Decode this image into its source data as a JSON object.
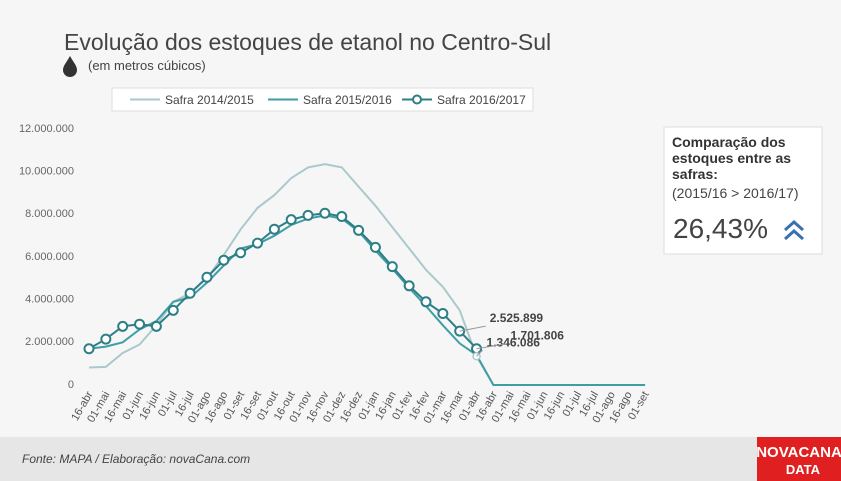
{
  "chart_data": {
    "type": "line",
    "title": "Evolução dos estoques de etanol no Centro-Sul",
    "subtitle": "(em metros cúbicos)",
    "categories": [
      "16-abr",
      "01-mai",
      "16-mai",
      "01-jun",
      "16-jun",
      "01-jul",
      "16-jul",
      "01-ago",
      "16-ago",
      "01-set",
      "16-set",
      "01-out",
      "16-out",
      "01-nov",
      "16-nov",
      "01-dez",
      "16-dez",
      "01-jan",
      "16-jan",
      "01-fev",
      "16-fev",
      "01-mar",
      "16-mar",
      "01-abr",
      "16-abr",
      "01-mai",
      "16-mai",
      "01-jun",
      "16-jun",
      "01-jul",
      "16-jul",
      "01-ago",
      "16-ago",
      "01-set"
    ],
    "series": [
      {
        "name": "Safra 2014/2015",
        "color": "#a9c9cc",
        "marker": false,
        "values": [
          820000,
          850000,
          1500000,
          1900000,
          2800000,
          3900000,
          4300000,
          5000000,
          6100000,
          7300000,
          8300000,
          8900000,
          9700000,
          10200000,
          10350000,
          10200000,
          9300000,
          8400000,
          7400000,
          6400000,
          5400000,
          4600000,
          3500000,
          1346086,
          0,
          0,
          0,
          0,
          0,
          0,
          0,
          0,
          0,
          0
        ],
        "value_labels": [
          null,
          null,
          null,
          null,
          null,
          null,
          null,
          null,
          null,
          null,
          null,
          null,
          null,
          null,
          null,
          null,
          null,
          null,
          null,
          null,
          null,
          null,
          null,
          "1.346.086",
          null,
          null,
          null,
          null,
          null,
          null,
          null,
          null,
          null,
          null
        ]
      },
      {
        "name": "Safra 2015/2016",
        "color": "#3f9ea5",
        "marker": false,
        "values": [
          1700000,
          1800000,
          2000000,
          2600000,
          3000000,
          3900000,
          4100000,
          4800000,
          5600000,
          6400000,
          6600000,
          7000000,
          7500000,
          7800000,
          7950000,
          7800000,
          7200000,
          6300000,
          5450000,
          4550000,
          3700000,
          2800000,
          1950000,
          1400000,
          0,
          0,
          0,
          0,
          0,
          0,
          0,
          0,
          0,
          0
        ]
      },
      {
        "name": "Safra 2016/2017",
        "color": "#2d7f86",
        "marker": true,
        "values": [
          1700000,
          2150000,
          2750000,
          2850000,
          2750000,
          3500000,
          4300000,
          5050000,
          5850000,
          6200000,
          6650000,
          7300000,
          7750000,
          7950000,
          8050000,
          7900000,
          7250000,
          6450000,
          5550000,
          4650000,
          3900000,
          3350000,
          2525899,
          1701806,
          null,
          null,
          null,
          null,
          null,
          null,
          null,
          null,
          null,
          null
        ],
        "value_labels": [
          null,
          null,
          null,
          null,
          null,
          null,
          null,
          null,
          null,
          null,
          null,
          null,
          null,
          null,
          null,
          null,
          null,
          null,
          null,
          null,
          null,
          null,
          "2.525.899",
          "1.701.806",
          null,
          null,
          null,
          null,
          null,
          null,
          null,
          null,
          null,
          null
        ]
      }
    ],
    "ylim": [
      0,
      12000000
    ],
    "yticks": [
      0,
      {
        "value": 2000000,
        "label": "2.000.000"
      },
      {
        "value": 4000000,
        "label": "4.000.000"
      },
      {
        "value": 6000000,
        "label": "6.000.000"
      },
      {
        "value": 8000000,
        "label": "8.000.000"
      },
      {
        "value": 10000000,
        "label": "10.000.000"
      },
      {
        "value": 12000000,
        "label": "12.000.000"
      }
    ],
    "grid": false,
    "legend": "top"
  },
  "panel": {
    "heading": "Comparação dos estoques entre as safras:",
    "note": "(2015/16 > 2016/17)",
    "value": "26,43%"
  },
  "footer": {
    "source": "Fonte: MAPA  / Elaboração: novaCana.com",
    "logo_top": "NOVACANA",
    "logo_bottom": "DATA"
  }
}
